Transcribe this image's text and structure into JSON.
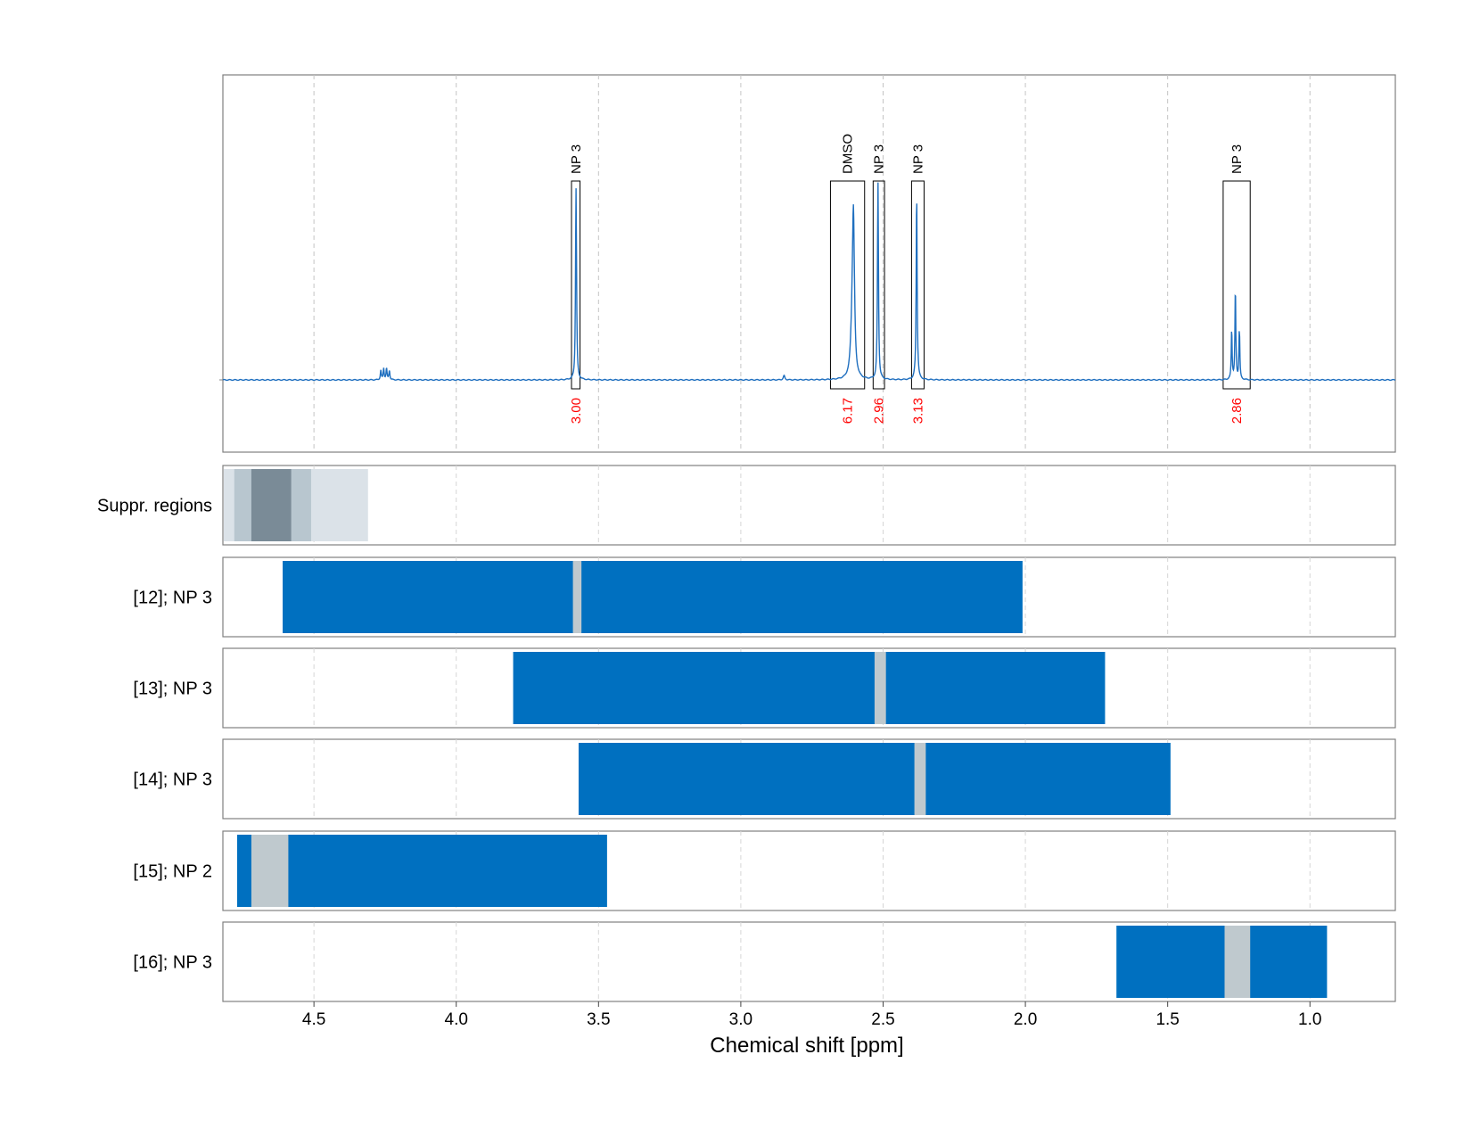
{
  "chart_data": {
    "type": "nmr-spectrum-with-range-tracks",
    "xlabel": "Chemical shift [ppm]",
    "x_reversed": true,
    "xlim": [
      4.82,
      0.7
    ],
    "x_ticks": [
      {
        "value": 4.5,
        "label": "4.5"
      },
      {
        "value": 4.0,
        "label": "4.0"
      },
      {
        "value": 3.5,
        "label": "3.5"
      },
      {
        "value": 3.0,
        "label": "3.0"
      },
      {
        "value": 2.5,
        "label": "2.5"
      },
      {
        "value": 2.0,
        "label": "2.0"
      },
      {
        "value": 1.5,
        "label": "1.5"
      },
      {
        "value": 1.0,
        "label": "1.0"
      }
    ],
    "grid": "dashed vertical",
    "spectrum": {
      "line_color": "#1f6fbf",
      "peaks": [
        {
          "ppm": 4.265,
          "height": 0.045,
          "width": 0.002
        },
        {
          "ppm": 4.255,
          "height": 0.055,
          "width": 0.002
        },
        {
          "ppm": 4.245,
          "height": 0.055,
          "width": 0.002
        },
        {
          "ppm": 4.235,
          "height": 0.045,
          "width": 0.002
        },
        {
          "ppm": 3.579,
          "height": 0.92,
          "width": 0.002
        },
        {
          "ppm": 2.848,
          "height": 0.02,
          "width": 0.003
        },
        {
          "ppm": 2.604,
          "height": 0.66,
          "width": 0.004
        },
        {
          "ppm": 2.608,
          "height": 0.25,
          "width": 0.006
        },
        {
          "ppm": 2.518,
          "height": 0.94,
          "width": 0.002
        },
        {
          "ppm": 2.382,
          "height": 0.9,
          "width": 0.002
        },
        {
          "ppm": 1.275,
          "height": 0.24,
          "width": 0.0018
        },
        {
          "ppm": 1.262,
          "height": 0.44,
          "width": 0.0018
        },
        {
          "ppm": 1.248,
          "height": 0.24,
          "width": 0.0018
        }
      ],
      "integrals": [
        {
          "label": "NP 3",
          "value": "3.00",
          "from": 3.595,
          "to": 3.565
        },
        {
          "label": "DMSO",
          "value": "6.17",
          "from": 2.685,
          "to": 2.565
        },
        {
          "label": "NP 3",
          "value": "2.96",
          "from": 2.535,
          "to": 2.495
        },
        {
          "label": "NP 3",
          "value": "3.13",
          "from": 2.4,
          "to": 2.356
        },
        {
          "label": "NP 3",
          "value": "2.86",
          "from": 1.305,
          "to": 1.21
        }
      ]
    },
    "tracks": [
      {
        "label": "Suppr. regions",
        "segments": [
          {
            "from": 4.82,
            "to": 4.31,
            "color": "#dbe2e8"
          },
          {
            "from": 4.78,
            "to": 4.51,
            "color": "#b8c6cf"
          },
          {
            "from": 4.72,
            "to": 4.58,
            "color": "#7a8b97"
          }
        ]
      },
      {
        "label": "[12]; NP 3",
        "segments": [
          {
            "from": 4.61,
            "to": 2.01,
            "color": "#0070c0"
          },
          {
            "from": 3.59,
            "to": 3.56,
            "color": "#bfc9ce"
          }
        ]
      },
      {
        "label": "[13]; NP 3",
        "segments": [
          {
            "from": 3.8,
            "to": 1.72,
            "color": "#0070c0"
          },
          {
            "from": 2.53,
            "to": 2.49,
            "color": "#bfc9ce"
          }
        ]
      },
      {
        "label": "[14]; NP 3",
        "segments": [
          {
            "from": 3.57,
            "to": 1.49,
            "color": "#0070c0"
          },
          {
            "from": 2.39,
            "to": 2.35,
            "color": "#bfc9ce"
          }
        ]
      },
      {
        "label": "[15]; NP 2",
        "segments": [
          {
            "from": 4.77,
            "to": 3.47,
            "color": "#0070c0"
          },
          {
            "from": 4.72,
            "to": 4.59,
            "color": "#bfc9ce"
          }
        ]
      },
      {
        "label": "[16]; NP 3",
        "segments": [
          {
            "from": 1.68,
            "to": 0.94,
            "color": "#0070c0"
          },
          {
            "from": 1.3,
            "to": 1.21,
            "color": "#bfc9ce"
          }
        ]
      }
    ]
  }
}
